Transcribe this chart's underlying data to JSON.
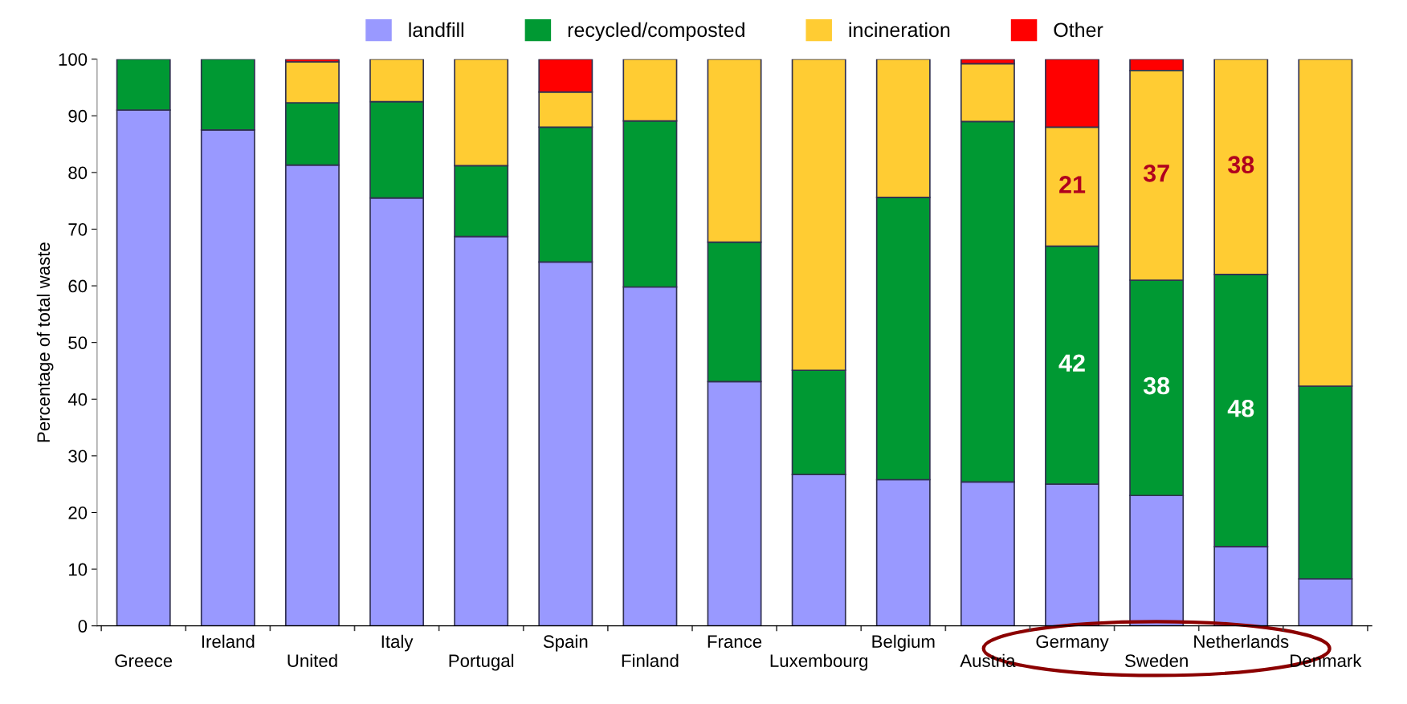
{
  "chart_data": {
    "type": "bar",
    "stacked": true,
    "ylabel": "Percentage of total waste",
    "categories": [
      "Greece",
      "Ireland",
      "United",
      "Italy",
      "Portugal",
      "Spain",
      "Finland",
      "France",
      "Luxembourg",
      "Belgium",
      "Austria",
      "Germany",
      "Sweden",
      "Netherlands",
      "Denmark"
    ],
    "series": [
      {
        "name": "landfill",
        "color": "#9999ff",
        "values": [
          91,
          87.5,
          81.3,
          75.5,
          68.7,
          64.2,
          59.8,
          43.1,
          26.7,
          25.8,
          25.4,
          25,
          23,
          14,
          8.3
        ]
      },
      {
        "name": "recycled/composted",
        "color": "#009933",
        "values": [
          9,
          12.5,
          11,
          17,
          12.5,
          23.8,
          29.3,
          24.6,
          18.4,
          49.8,
          63.6,
          42,
          38,
          48,
          34
        ],
        "value_labels": [
          null,
          null,
          null,
          null,
          null,
          null,
          null,
          null,
          null,
          null,
          null,
          "42",
          "38",
          "48",
          null
        ]
      },
      {
        "name": "incineration",
        "color": "#ffcc33",
        "values": [
          null,
          null,
          7.2,
          7.5,
          18.8,
          6.2,
          10.9,
          32.3,
          54.9,
          24.4,
          10.2,
          21,
          37,
          38,
          57.7
        ],
        "value_labels": [
          null,
          null,
          null,
          null,
          null,
          null,
          null,
          null,
          null,
          null,
          null,
          "21",
          "37",
          "38",
          null
        ]
      },
      {
        "name": "Other",
        "color": "#ff0000",
        "values": [
          null,
          null,
          0.5,
          null,
          null,
          5.8,
          null,
          null,
          null,
          null,
          0.8,
          12,
          2,
          null,
          null
        ]
      }
    ],
    "ylim": [
      0,
      100
    ],
    "yticks": [
      0,
      10,
      20,
      30,
      40,
      50,
      60,
      70,
      80,
      90,
      100
    ],
    "legend": "top",
    "grid": false
  }
}
